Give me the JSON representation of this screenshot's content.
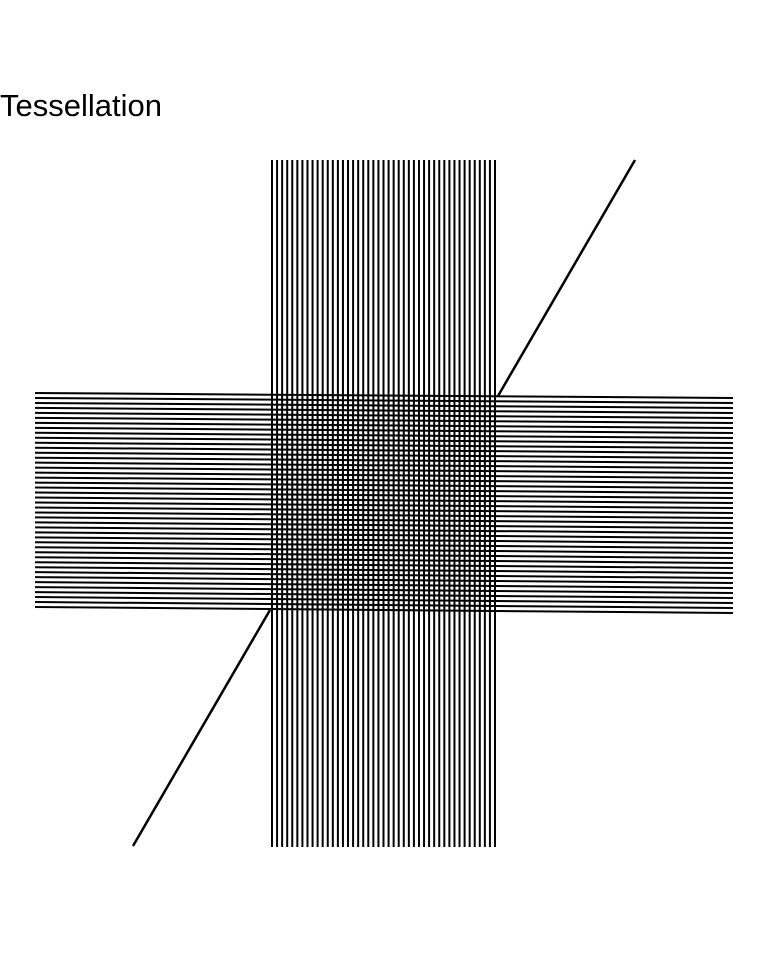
{
  "page": {
    "title": "Tessellation"
  },
  "figure": {
    "stroke_color": "#000000",
    "background_color": "#ffffff",
    "vertical_band_line_count": 45,
    "horizontal_band_line_count": 44
  }
}
